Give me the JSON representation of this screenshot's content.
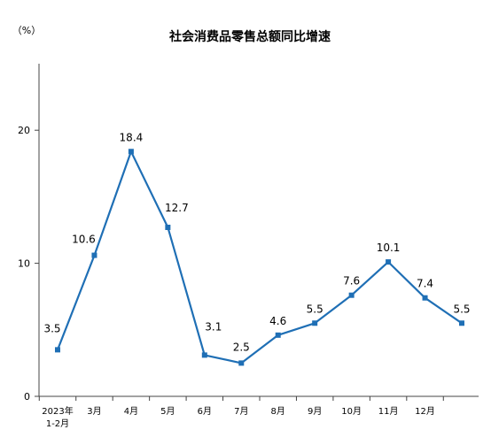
{
  "chart_data": {
    "type": "line",
    "title": "社会消费品零售总额同比增速",
    "unit_label": "（%）",
    "xlabel": "",
    "ylabel": "",
    "ylim": [
      0,
      25
    ],
    "yticks": [
      0,
      10,
      20
    ],
    "grid": false,
    "categories": [
      [
        "2023年",
        "1-2月"
      ],
      [
        "3月"
      ],
      [
        "4月"
      ],
      [
        "5月"
      ],
      [
        "6月"
      ],
      [
        "7月"
      ],
      [
        "8月"
      ],
      [
        "9月"
      ],
      [
        "10月"
      ],
      [
        "11月"
      ],
      [
        "12月"
      ],
      [
        ""
      ]
    ],
    "series": [
      {
        "color": "#1f6fb5",
        "values": [
          3.5,
          10.6,
          18.4,
          12.7,
          3.1,
          2.5,
          4.6,
          5.5,
          7.6,
          10.1,
          7.4,
          5.5
        ],
        "data_labels": [
          "3.5",
          "10.6",
          "18.4",
          "12.7",
          "3.1",
          "2.5",
          "4.6",
          "5.5",
          "7.6",
          "10.1",
          "7.4",
          "5.5"
        ]
      }
    ]
  }
}
